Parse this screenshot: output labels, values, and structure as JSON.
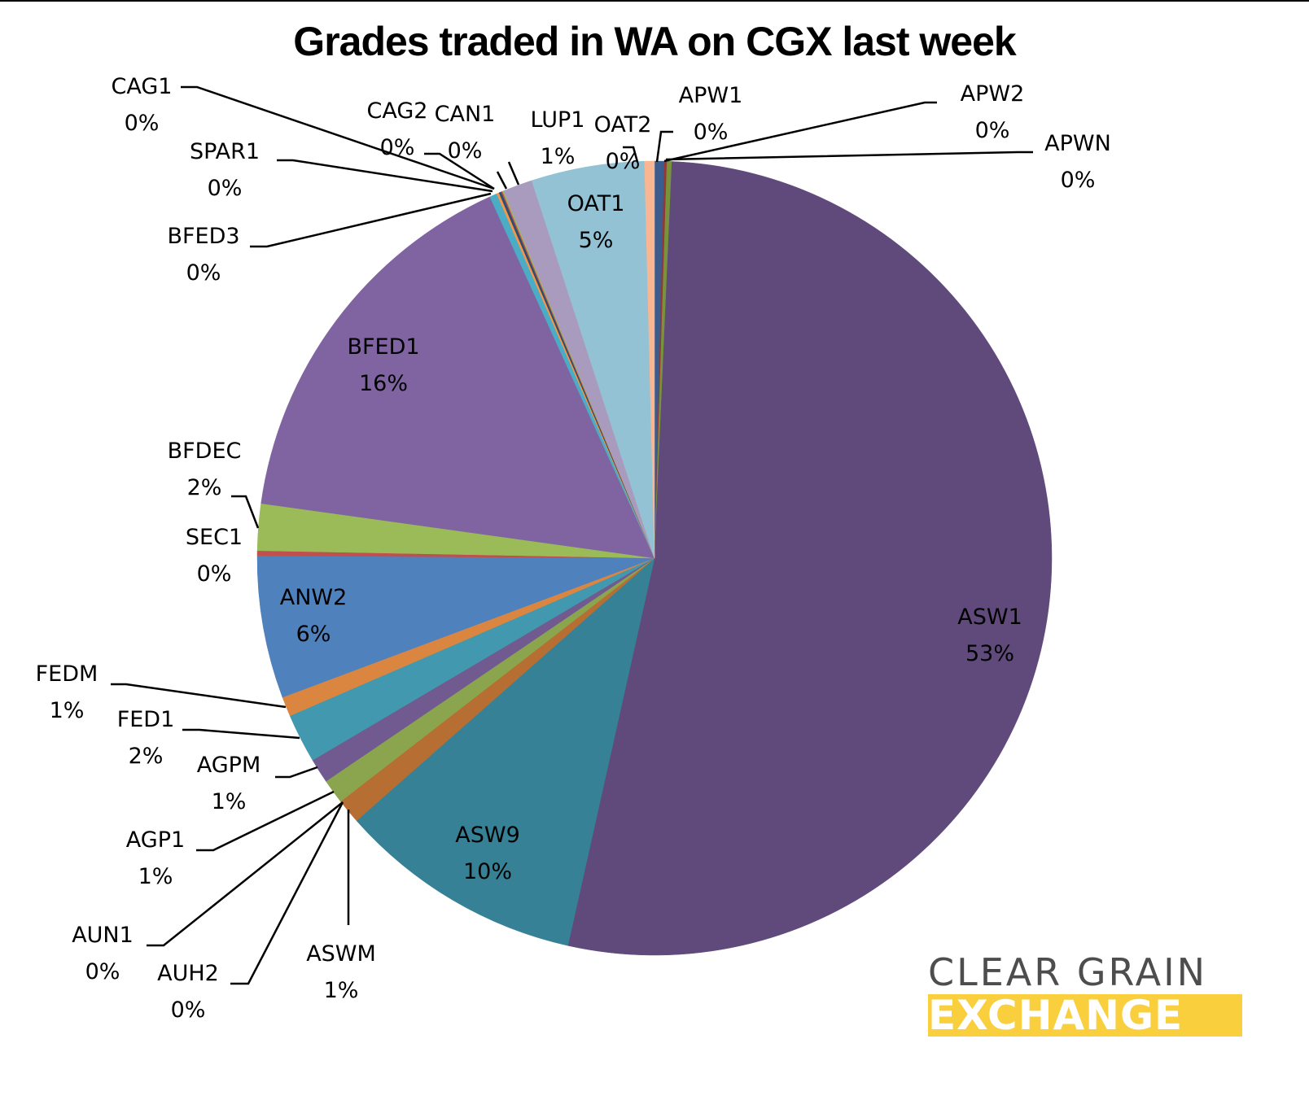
{
  "page": {
    "title": "Grades traded in WA on CGX last week"
  },
  "logo": {
    "line1": "CLEAR GRAIN",
    "line2": "EXCHANGE",
    "line1_color": "#4d4d4d",
    "line2_bg": "#f9cf3e"
  },
  "chart_data": {
    "type": "pie",
    "title": "Grades traded in WA on CGX last week",
    "start_angle_deg": 0,
    "direction": "clockwise",
    "legend": "none (data labels with leader lines)",
    "slices": [
      {
        "label": "APW1",
        "pct_label": "0%",
        "value": 0.4,
        "color": "#3b5c8c"
      },
      {
        "label": "APW2",
        "pct_label": "0%",
        "value": 0.1,
        "color": "#953735"
      },
      {
        "label": "APWN",
        "pct_label": "0%",
        "value": 0.2,
        "color": "#77933c"
      },
      {
        "label": "ASW1",
        "pct_label": "53%",
        "value": 52.8,
        "color": "#604a7b"
      },
      {
        "label": "ASW9",
        "pct_label": "10%",
        "value": 10.0,
        "color": "#368195"
      },
      {
        "label": "ASWM",
        "pct_label": "1%",
        "value": 1.0,
        "color": "#b66e32"
      },
      {
        "label": "AUH2",
        "pct_label": "0%",
        "value": 0.0,
        "color": "#4a7cb8"
      },
      {
        "label": "AUN1",
        "pct_label": "0%",
        "value": 0.0,
        "color": "#c0504d"
      },
      {
        "label": "AGP1",
        "pct_label": "1%",
        "value": 1.0,
        "color": "#8ba44e"
      },
      {
        "label": "AGPM",
        "pct_label": "1%",
        "value": 1.0,
        "color": "#705a90"
      },
      {
        "label": "FED1",
        "pct_label": "2%",
        "value": 2.0,
        "color": "#4298ae"
      },
      {
        "label": "FEDM",
        "pct_label": "1%",
        "value": 0.8,
        "color": "#da8641"
      },
      {
        "label": "ANW2",
        "pct_label": "6%",
        "value": 5.8,
        "color": "#4f81bd"
      },
      {
        "label": "SEC1",
        "pct_label": "0%",
        "value": 0.2,
        "color": "#c0504d"
      },
      {
        "label": "BFDEC",
        "pct_label": "2%",
        "value": 1.9,
        "color": "#9bbb59"
      },
      {
        "label": "BFED1",
        "pct_label": "16%",
        "value": 16.0,
        "color": "#8064a2"
      },
      {
        "label": "BFED3",
        "pct_label": "0%",
        "value": 0.3,
        "color": "#4bacc6"
      },
      {
        "label": "SPAR1",
        "pct_label": "0%",
        "value": 0.1,
        "color": "#f79646"
      },
      {
        "label": "CAG1",
        "pct_label": "0%",
        "value": 0.1,
        "color": "#2c4d75"
      },
      {
        "label": "CAG2",
        "pct_label": "0%",
        "value": 0.05,
        "color": "#c0504d"
      },
      {
        "label": "CAN1",
        "pct_label": "0%",
        "value": 0.05,
        "color": "#9bbb59"
      },
      {
        "label": "LUP1",
        "pct_label": "1%",
        "value": 1.2,
        "color": "#a99bbd"
      },
      {
        "label": "OAT1",
        "pct_label": "5%",
        "value": 4.6,
        "color": "#93c2d4"
      },
      {
        "label": "OAT2",
        "pct_label": "0%",
        "value": 0.4,
        "color": "#f9b692"
      }
    ]
  }
}
